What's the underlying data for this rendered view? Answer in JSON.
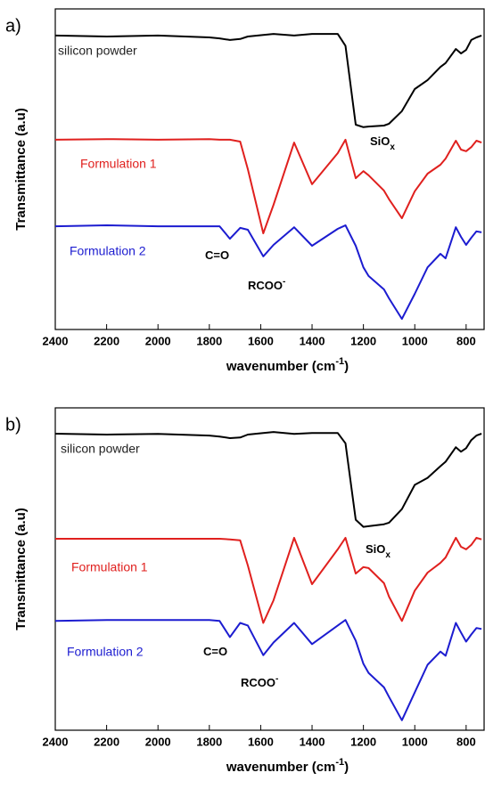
{
  "chart_data": [
    {
      "type": "line",
      "panel_label": "a)",
      "ylabel": "Transmittance (a.u)",
      "xlabel": "wavenumber (cm",
      "xlabel_sup": "-1",
      "xlabel_end": ")",
      "xlim": [
        2400,
        730
      ],
      "xticks": [
        2400,
        2200,
        2000,
        1800,
        1600,
        1400,
        1200,
        1000,
        800
      ],
      "ylim": [
        0,
        100
      ],
      "x": [
        2400,
        2200,
        2000,
        1800,
        1760,
        1720,
        1680,
        1650,
        1590,
        1550,
        1470,
        1400,
        1300,
        1270,
        1230,
        1200,
        1180,
        1120,
        1100,
        1050,
        1000,
        950,
        900,
        880,
        840,
        820,
        800,
        780,
        760,
        740
      ],
      "series": [
        {
          "name": "silicon powder",
          "color": "#000000",
          "values": [
            91.7,
            91.4,
            91.7,
            91.1,
            90.8,
            90.3,
            90.6,
            91.4,
            91.9,
            92.2,
            91.7,
            92.2,
            92.2,
            88.5,
            63.9,
            63.1,
            63.3,
            63.6,
            64.2,
            68.1,
            75,
            77.8,
            81.9,
            83.1,
            87.5,
            86.1,
            87.2,
            90.3,
            91.1,
            91.7
          ]
        },
        {
          "name": "Formulation 1",
          "color": "#e0201e",
          "values": [
            59.2,
            59.4,
            59.2,
            59.4,
            59.2,
            59.2,
            58.6,
            50,
            30,
            38.9,
            58.3,
            45.3,
            55,
            59.2,
            47.2,
            49.4,
            48.1,
            43.3,
            40.6,
            34.7,
            43.1,
            48.6,
            51.4,
            53.3,
            58.9,
            56.1,
            55.6,
            56.9,
            58.9,
            58.3
          ]
        },
        {
          "name": "Formulation 2",
          "color": "#1c1cd0",
          "values": [
            32.2,
            32.5,
            32.2,
            32.2,
            32.2,
            28.3,
            31.7,
            31.1,
            22.8,
            26.4,
            31.9,
            26.1,
            31.4,
            32.5,
            26.1,
            19.4,
            16.7,
            12.5,
            9.7,
            3.3,
            11.1,
            19.4,
            23.6,
            22.2,
            31.9,
            28.9,
            26.4,
            28.6,
            30.6,
            30.3
          ]
        }
      ],
      "annotations": [
        {
          "text": "SiO",
          "sub": "x"
        },
        {
          "text": "C=O"
        },
        {
          "text": "RCOO",
          "sup": "-"
        }
      ]
    },
    {
      "type": "line",
      "panel_label": "b)",
      "ylabel": "Transmittance (a.u)",
      "xlabel": "wavenumber (cm",
      "xlabel_sup": "-1",
      "xlabel_end": ")",
      "xlim": [
        2400,
        730
      ],
      "xticks": [
        2400,
        2200,
        2000,
        1800,
        1600,
        1400,
        1200,
        1000,
        800
      ],
      "ylim": [
        0,
        100
      ],
      "x": [
        2400,
        2200,
        2000,
        1800,
        1760,
        1720,
        1680,
        1650,
        1590,
        1550,
        1470,
        1400,
        1300,
        1270,
        1230,
        1200,
        1180,
        1120,
        1100,
        1050,
        1000,
        950,
        900,
        880,
        840,
        820,
        800,
        780,
        760,
        740
      ],
      "series": [
        {
          "name": "silicon powder",
          "color": "#000000",
          "values": [
            92,
            91.7,
            91.9,
            91.4,
            91.1,
            90.6,
            90.8,
            91.7,
            92.2,
            92.5,
            91.9,
            92.2,
            92.2,
            89,
            65.3,
            63.1,
            63.3,
            63.9,
            64.4,
            68.6,
            76.1,
            78.3,
            81.9,
            83.3,
            87.8,
            86.4,
            87.5,
            90,
            91.4,
            92
          ]
        },
        {
          "name": "Formulation 1",
          "color": "#e0201e",
          "values": [
            59.4,
            59.4,
            59.4,
            59.4,
            59.4,
            59.2,
            58.9,
            51.1,
            33.3,
            40.3,
            59.7,
            45.3,
            56.1,
            59.7,
            48.6,
            50.6,
            50.3,
            45.6,
            41.4,
            33.9,
            43.3,
            48.9,
            51.9,
            53.6,
            59.7,
            56.9,
            56.1,
            57.5,
            59.7,
            59.2
          ]
        },
        {
          "name": "Formulation 2",
          "color": "#1c1cd0",
          "values": [
            33.9,
            34.2,
            34.2,
            34.2,
            33.9,
            28.9,
            33.3,
            32.5,
            23.3,
            27.2,
            33.3,
            26.7,
            32.5,
            34.2,
            27.8,
            20.6,
            17.8,
            13.3,
            10.3,
            3.1,
            11.7,
            20.3,
            24.4,
            23.1,
            33.3,
            30.3,
            27.5,
            29.7,
            31.7,
            31.4
          ]
        }
      ],
      "annotations": [
        {
          "text": "SiO",
          "sub": "x"
        },
        {
          "text": "C=O"
        },
        {
          "text": "RCOO",
          "sup": "-"
        }
      ]
    }
  ]
}
